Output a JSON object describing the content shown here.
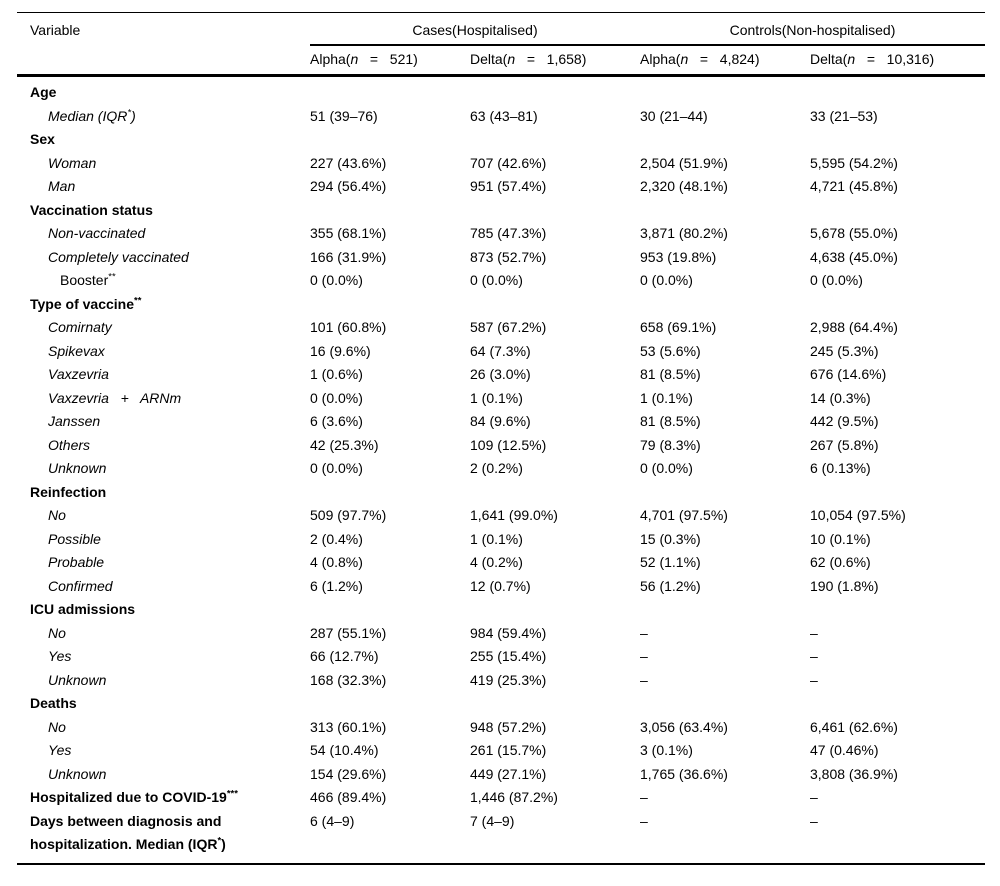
{
  "table": {
    "text_color": "#000000",
    "background_color": "#ffffff",
    "rule_color": "#000000",
    "header": {
      "variable_label": "Variable",
      "groups": [
        {
          "label": "Cases(Hospitalised)"
        },
        {
          "label": "Controls(Non-hospitalised)"
        }
      ],
      "subheaders": [
        [
          {
            "t": "Alpha("
          },
          {
            "t": "n",
            "i": true
          },
          {
            "t": "   =   "
          },
          {
            "t": "521)"
          }
        ],
        [
          {
            "t": "Delta("
          },
          {
            "t": "n",
            "i": true
          },
          {
            "t": "   =   "
          },
          {
            "t": "1,658)"
          }
        ],
        [
          {
            "t": "Alpha("
          },
          {
            "t": "n",
            "i": true
          },
          {
            "t": "   =   "
          },
          {
            "t": "4,824)"
          }
        ],
        [
          {
            "t": "Delta("
          },
          {
            "t": "n",
            "i": true
          },
          {
            "t": "   =   "
          },
          {
            "t": "10,316)"
          }
        ]
      ]
    },
    "rows": [
      {
        "cls": "l0",
        "label": [
          {
            "t": "Age"
          }
        ],
        "values": [
          "",
          "",
          "",
          ""
        ]
      },
      {
        "cls": "l1",
        "label": [
          {
            "t": "Median (IQR"
          },
          {
            "t": "*",
            "sup": true
          },
          {
            "t": ")"
          }
        ],
        "values": [
          "51 (39–76)",
          "63 (43–81)",
          "30 (21–44)",
          "33 (21–53)"
        ]
      },
      {
        "cls": "l0",
        "label": [
          {
            "t": "Sex"
          }
        ],
        "values": [
          "",
          "",
          "",
          ""
        ]
      },
      {
        "cls": "l1",
        "label": [
          {
            "t": "Woman"
          }
        ],
        "values": [
          "227 (43.6%)",
          "707 (42.6%)",
          "2,504 (51.9%)",
          "5,595 (54.2%)"
        ]
      },
      {
        "cls": "l1",
        "label": [
          {
            "t": "Man"
          }
        ],
        "values": [
          "294 (56.4%)",
          "951 (57.4%)",
          "2,320 (48.1%)",
          "4,721 (45.8%)"
        ]
      },
      {
        "cls": "l0",
        "label": [
          {
            "t": "Vaccination status"
          }
        ],
        "values": [
          "",
          "",
          "",
          ""
        ]
      },
      {
        "cls": "l1",
        "label": [
          {
            "t": "Non-vaccinated"
          }
        ],
        "values": [
          "355 (68.1%)",
          "785 (47.3%)",
          "3,871 (80.2%)",
          "5,678 (55.0%)"
        ]
      },
      {
        "cls": "l1",
        "label": [
          {
            "t": "Completely vaccinated"
          }
        ],
        "values": [
          "166 (31.9%)",
          "873 (52.7%)",
          "953 (19.8%)",
          "4,638 (45.0%)"
        ]
      },
      {
        "cls": "l2",
        "label": [
          {
            "t": "Booster"
          },
          {
            "t": "**",
            "sup": true
          }
        ],
        "values": [
          "0 (0.0%)",
          "0 (0.0%)",
          "0 (0.0%)",
          "0 (0.0%)"
        ]
      },
      {
        "cls": "l0",
        "label": [
          {
            "t": "Type of vaccine"
          },
          {
            "t": "**",
            "sup": true
          }
        ],
        "values": [
          "",
          "",
          "",
          ""
        ]
      },
      {
        "cls": "l1",
        "label": [
          {
            "t": "Comirnaty"
          }
        ],
        "values": [
          "101 (60.8%)",
          "587 (67.2%)",
          "658 (69.1%)",
          "2,988 (64.4%)"
        ]
      },
      {
        "cls": "l1",
        "label": [
          {
            "t": "Spikevax"
          }
        ],
        "values": [
          "16 (9.6%)",
          "64 (7.3%)",
          "53 (5.6%)",
          "245 (5.3%)"
        ]
      },
      {
        "cls": "l1",
        "label": [
          {
            "t": "Vaxzevria"
          }
        ],
        "values": [
          "1 (0.6%)",
          "26 (3.0%)",
          "81 (8.5%)",
          "676 (14.6%)"
        ]
      },
      {
        "cls": "l1",
        "label": [
          {
            "t": "Vaxzevria   +   ARNm"
          }
        ],
        "values": [
          "0 (0.0%)",
          "1 (0.1%)",
          "1 (0.1%)",
          "14 (0.3%)"
        ]
      },
      {
        "cls": "l1",
        "label": [
          {
            "t": "Janssen"
          }
        ],
        "values": [
          "6 (3.6%)",
          "84 (9.6%)",
          "81 (8.5%)",
          "442 (9.5%)"
        ]
      },
      {
        "cls": "l1",
        "label": [
          {
            "t": "Others"
          }
        ],
        "values": [
          "42 (25.3%)",
          "109 (12.5%)",
          "79 (8.3%)",
          "267 (5.8%)"
        ]
      },
      {
        "cls": "l1",
        "label": [
          {
            "t": "Unknown"
          }
        ],
        "values": [
          "0 (0.0%)",
          "2 (0.2%)",
          "0 (0.0%)",
          "6 (0.13%)"
        ]
      },
      {
        "cls": "l0",
        "label": [
          {
            "t": "Reinfection"
          }
        ],
        "values": [
          "",
          "",
          "",
          ""
        ]
      },
      {
        "cls": "l1",
        "label": [
          {
            "t": "No"
          }
        ],
        "values": [
          "509 (97.7%)",
          "1,641 (99.0%)",
          "4,701 (97.5%)",
          "10,054 (97.5%)"
        ]
      },
      {
        "cls": "l1",
        "label": [
          {
            "t": "Possible"
          }
        ],
        "values": [
          "2 (0.4%)",
          "1 (0.1%)",
          "15 (0.3%)",
          "10 (0.1%)"
        ]
      },
      {
        "cls": "l1",
        "label": [
          {
            "t": "Probable"
          }
        ],
        "values": [
          "4 (0.8%)",
          "4 (0.2%)",
          "52 (1.1%)",
          "62 (0.6%)"
        ]
      },
      {
        "cls": "l1",
        "label": [
          {
            "t": "Confirmed"
          }
        ],
        "values": [
          "6 (1.2%)",
          "12 (0.7%)",
          "56 (1.2%)",
          "190 (1.8%)"
        ]
      },
      {
        "cls": "l0",
        "label": [
          {
            "t": "ICU admissions"
          }
        ],
        "values": [
          "",
          "",
          "",
          ""
        ]
      },
      {
        "cls": "l1",
        "label": [
          {
            "t": "No"
          }
        ],
        "values": [
          "287 (55.1%)",
          "984 (59.4%)",
          "–",
          "–"
        ]
      },
      {
        "cls": "l1",
        "label": [
          {
            "t": "Yes"
          }
        ],
        "values": [
          "66 (12.7%)",
          "255 (15.4%)",
          "–",
          "–"
        ]
      },
      {
        "cls": "l1",
        "label": [
          {
            "t": "Unknown"
          }
        ],
        "values": [
          "168 (32.3%)",
          "419 (25.3%)",
          "–",
          "–"
        ]
      },
      {
        "cls": "l0",
        "label": [
          {
            "t": "Deaths"
          }
        ],
        "values": [
          "",
          "",
          "",
          ""
        ]
      },
      {
        "cls": "l1",
        "label": [
          {
            "t": "No"
          }
        ],
        "values": [
          "313 (60.1%)",
          "948 (57.2%)",
          "3,056 (63.4%)",
          "6,461 (62.6%)"
        ]
      },
      {
        "cls": "l1",
        "label": [
          {
            "t": "Yes"
          }
        ],
        "values": [
          "54 (10.4%)",
          "261 (15.7%)",
          "3 (0.1%)",
          "47 (0.46%)"
        ]
      },
      {
        "cls": "l1",
        "label": [
          {
            "t": "Unknown"
          }
        ],
        "values": [
          "154 (29.6%)",
          "449 (27.1%)",
          "1,765 (36.6%)",
          "3,808 (36.9%)"
        ]
      },
      {
        "cls": "l0",
        "label": [
          {
            "t": "Hospitalized due to COVID-19"
          },
          {
            "t": "***",
            "sup": true
          }
        ],
        "values": [
          "466 (89.4%)",
          "1,446 (87.2%)",
          "–",
          "–"
        ]
      },
      {
        "cls": "l0",
        "label": [
          {
            "t": "Days between diagnosis and\nhospitalization. Median (IQR"
          },
          {
            "t": "*",
            "sup": true
          },
          {
            "t": ")"
          }
        ],
        "values": [
          "6 (4–9)",
          "7 (4–9)",
          "–",
          "–"
        ]
      }
    ]
  }
}
